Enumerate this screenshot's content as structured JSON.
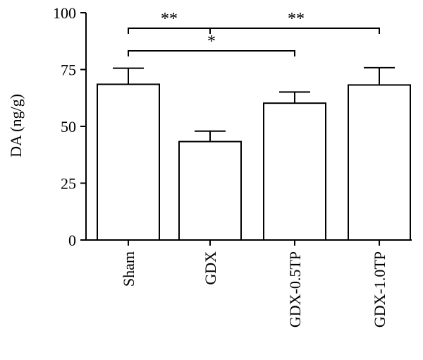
{
  "chart_data": {
    "type": "bar",
    "ylabel": "DA (ng/g)",
    "ylim": [
      0,
      100
    ],
    "yticks": [
      0,
      25,
      50,
      75,
      100
    ],
    "categories": [
      "Sham",
      "GDX",
      "GDX-0.5TP",
      "GDX-1.0TP"
    ],
    "values": [
      68.5,
      43.3,
      60.2,
      68.2
    ],
    "errors": [
      7.1,
      4.6,
      4.9,
      7.6
    ],
    "significance": [
      {
        "from": "Sham",
        "to": "GDX",
        "label": "**"
      },
      {
        "from": "GDX",
        "to": "GDX-1.0TP",
        "label": "**"
      },
      {
        "from": "Sham",
        "to": "GDX-0.5TP",
        "label": "*"
      }
    ],
    "colors": {
      "bar_fill": "#ffffff",
      "stroke": "#000000"
    }
  }
}
